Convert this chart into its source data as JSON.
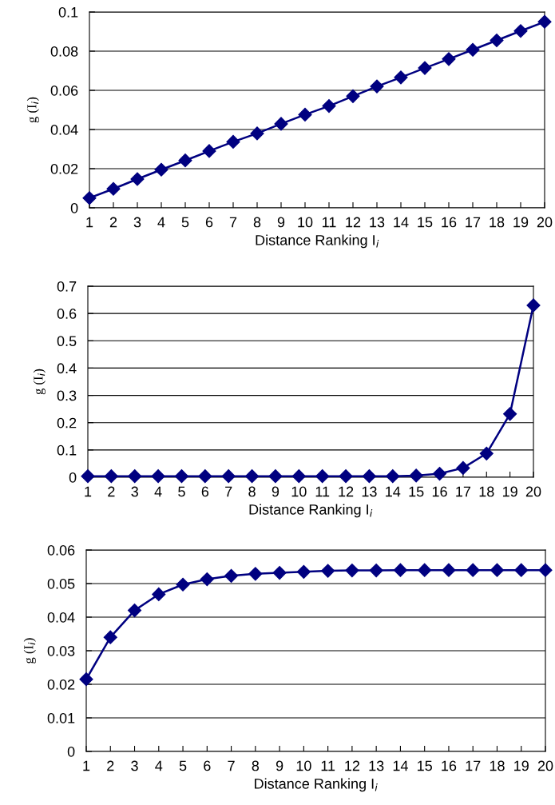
{
  "chart_data": [
    {
      "type": "line",
      "xlabel": "Distance Ranking I$_{i}$",
      "ylabel": "g (I$_{i}$)",
      "categories": [
        "1",
        "2",
        "3",
        "4",
        "5",
        "6",
        "7",
        "8",
        "9",
        "10",
        "11",
        "12",
        "13",
        "14",
        "15",
        "16",
        "17",
        "18",
        "19",
        "20"
      ],
      "series": [
        {
          "color": "#000080",
          "values": [
            0.005,
            0.0097,
            0.0147,
            0.0195,
            0.0242,
            0.029,
            0.0337,
            0.038,
            0.0429,
            0.0476,
            0.052,
            0.057,
            0.062,
            0.0666,
            0.0714,
            0.076,
            0.0807,
            0.0855,
            0.0903,
            0.095
          ]
        }
      ],
      "ylim": [
        0,
        0.1
      ],
      "yticks": [
        0,
        0.02,
        0.04,
        0.06,
        0.08,
        0.1
      ],
      "grid": "y",
      "marker": "diamond",
      "line_style": "solid"
    },
    {
      "type": "line",
      "xlabel": "Distance Ranking I$_{i}$",
      "ylabel": "g (I$_{i}$)",
      "categories": [
        "1",
        "2",
        "3",
        "4",
        "5",
        "6",
        "7",
        "8",
        "9",
        "10",
        "11",
        "12",
        "13",
        "14",
        "15",
        "16",
        "17",
        "18",
        "19",
        "20"
      ],
      "series": [
        {
          "color": "#000080",
          "values": [
            0.004,
            0.004,
            0.004,
            0.004,
            0.004,
            0.004,
            0.004,
            0.004,
            0.004,
            0.004,
            0.004,
            0.004,
            0.004,
            0.004,
            0.006,
            0.013,
            0.034,
            0.087,
            0.232,
            0.63
          ]
        }
      ],
      "ylim": [
        0,
        0.7
      ],
      "yticks": [
        0,
        0.1,
        0.2,
        0.3,
        0.4,
        0.5,
        0.6,
        0.7
      ],
      "grid": "y",
      "marker": "diamond",
      "line_style": "solid"
    },
    {
      "type": "line",
      "xlabel": "Distance Ranking I$_{i}$",
      "ylabel": "g (I$_{i}$)",
      "categories": [
        "1",
        "2",
        "3",
        "4",
        "5",
        "6",
        "7",
        "8",
        "9",
        "10",
        "11",
        "12",
        "13",
        "14",
        "15",
        "16",
        "17",
        "18",
        "19",
        "20"
      ],
      "series": [
        {
          "color": "#000080",
          "values": [
            0.0215,
            0.034,
            0.042,
            0.0468,
            0.0497,
            0.0513,
            0.0523,
            0.0529,
            0.0532,
            0.0535,
            0.0538,
            0.0539,
            0.0539,
            0.054,
            0.054,
            0.054,
            0.054,
            0.054,
            0.054,
            0.054
          ]
        }
      ],
      "ylim": [
        0,
        0.06
      ],
      "yticks": [
        0,
        0.01,
        0.02,
        0.03,
        0.04,
        0.05,
        0.06
      ],
      "grid": "y",
      "marker": "diamond",
      "line_style": "solid"
    }
  ]
}
